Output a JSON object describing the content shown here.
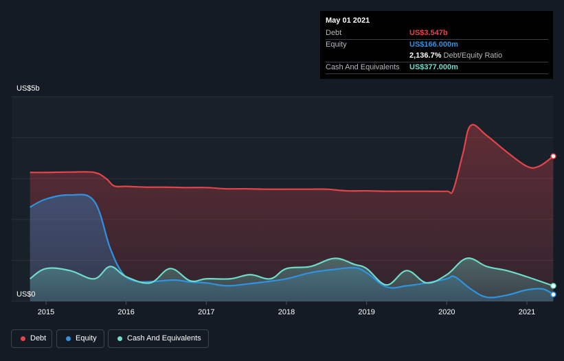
{
  "chart_data": {
    "type": "area",
    "y_axis": {
      "top_label": "US$5b",
      "bottom_label": "US$0",
      "ylim": [
        0,
        5
      ]
    },
    "x_ticks": [
      "2015",
      "2016",
      "2017",
      "2018",
      "2019",
      "2020",
      "2021"
    ],
    "x_range": [
      2014.8,
      2021.33
    ],
    "series": [
      {
        "name": "Debt",
        "color": "#e5444a",
        "x": [
          2014.8,
          2015.0,
          2015.3,
          2015.6,
          2015.75,
          2015.85,
          2016.0,
          2016.25,
          2016.5,
          2016.75,
          2017.0,
          2017.25,
          2017.5,
          2017.75,
          2018.0,
          2018.25,
          2018.5,
          2018.75,
          2019.0,
          2019.25,
          2019.5,
          2019.75,
          2020.0,
          2020.08,
          2020.2,
          2020.3,
          2020.5,
          2020.75,
          2021.0,
          2021.15,
          2021.33
        ],
        "values": [
          3.15,
          3.15,
          3.16,
          3.15,
          3.0,
          2.82,
          2.81,
          2.79,
          2.79,
          2.78,
          2.78,
          2.75,
          2.75,
          2.74,
          2.74,
          2.74,
          2.74,
          2.7,
          2.7,
          2.69,
          2.69,
          2.69,
          2.69,
          2.72,
          3.6,
          4.3,
          4.05,
          3.65,
          3.3,
          3.3,
          3.547
        ]
      },
      {
        "name": "Equity",
        "color": "#2f93e0",
        "x": [
          2014.8,
          2015.0,
          2015.3,
          2015.6,
          2015.8,
          2015.95,
          2016.1,
          2016.3,
          2016.6,
          2016.8,
          2017.0,
          2017.25,
          2017.5,
          2017.75,
          2018.0,
          2018.3,
          2018.6,
          2018.85,
          2019.0,
          2019.25,
          2019.5,
          2019.75,
          2020.0,
          2020.1,
          2020.3,
          2020.5,
          2020.75,
          2021.0,
          2021.2,
          2021.33
        ],
        "values": [
          2.3,
          2.5,
          2.6,
          2.45,
          1.3,
          0.7,
          0.5,
          0.48,
          0.52,
          0.47,
          0.45,
          0.38,
          0.42,
          0.48,
          0.55,
          0.7,
          0.78,
          0.82,
          0.7,
          0.35,
          0.38,
          0.45,
          0.55,
          0.6,
          0.3,
          0.1,
          0.15,
          0.28,
          0.3,
          0.166
        ]
      },
      {
        "name": "Cash And Equivalents",
        "color": "#6fdcca",
        "x": [
          2014.8,
          2015.0,
          2015.3,
          2015.6,
          2015.8,
          2016.0,
          2016.3,
          2016.55,
          2016.8,
          2017.0,
          2017.3,
          2017.55,
          2017.8,
          2018.0,
          2018.3,
          2018.6,
          2018.85,
          2019.0,
          2019.25,
          2019.5,
          2019.75,
          2020.0,
          2020.25,
          2020.5,
          2020.75,
          2021.0,
          2021.33
        ],
        "values": [
          0.55,
          0.8,
          0.75,
          0.55,
          0.85,
          0.6,
          0.45,
          0.8,
          0.5,
          0.55,
          0.55,
          0.65,
          0.55,
          0.8,
          0.85,
          1.05,
          0.9,
          0.8,
          0.4,
          0.75,
          0.45,
          0.65,
          1.05,
          0.85,
          0.75,
          0.6,
          0.377
        ]
      }
    ]
  },
  "tooltip": {
    "date": "May 01 2021",
    "debt_label": "Debt",
    "debt_value": "US$3.547b",
    "equity_label": "Equity",
    "equity_value": "US$166.000m",
    "ratio_value": "2,136.7%",
    "ratio_label": "Debt/Equity Ratio",
    "cash_label": "Cash And Equivalents",
    "cash_value": "US$377.000m"
  },
  "legend": [
    {
      "label": "Debt",
      "color": "#e5444a"
    },
    {
      "label": "Equity",
      "color": "#2f93e0"
    },
    {
      "label": "Cash And Equivalents",
      "color": "#6fdcca"
    }
  ]
}
